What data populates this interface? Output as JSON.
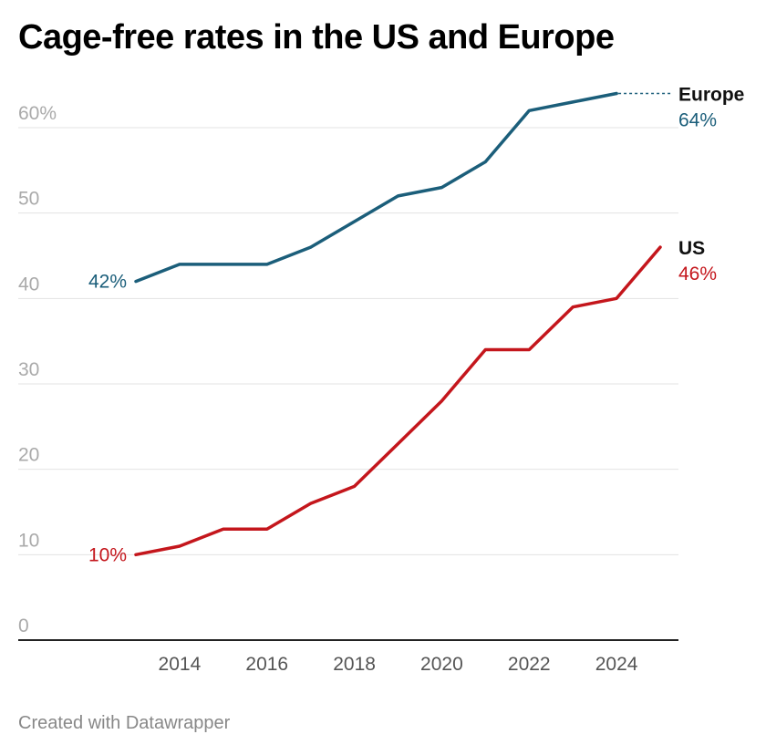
{
  "title": "Cage-free rates in the US and Europe",
  "footer": "Created with Datawrapper",
  "chart_data": {
    "type": "line",
    "title": "Cage-free rates in the US and Europe",
    "x": [
      2013,
      2014,
      2015,
      2016,
      2017,
      2018,
      2019,
      2020,
      2021,
      2022,
      2023,
      2024,
      2025
    ],
    "x_ticks": [
      "2014",
      "2016",
      "2018",
      "2020",
      "2022",
      "2024"
    ],
    "y_ticks": [
      "0",
      "10",
      "20",
      "30",
      "40",
      "50",
      "60%"
    ],
    "ylim": [
      0,
      64
    ],
    "grid": true,
    "series": [
      {
        "name": "Europe",
        "color": "#1b5e7a",
        "values": [
          42,
          44,
          44,
          44,
          46,
          49,
          52,
          53,
          56,
          62,
          63,
          64,
          null
        ],
        "start_label": "42%",
        "end_label": "64%"
      },
      {
        "name": "US",
        "color": "#c4161c",
        "values": [
          10,
          11,
          13,
          13,
          16,
          18,
          23,
          28,
          34,
          34,
          39,
          40,
          46
        ],
        "start_label": "10%",
        "end_label": "46%"
      }
    ]
  }
}
